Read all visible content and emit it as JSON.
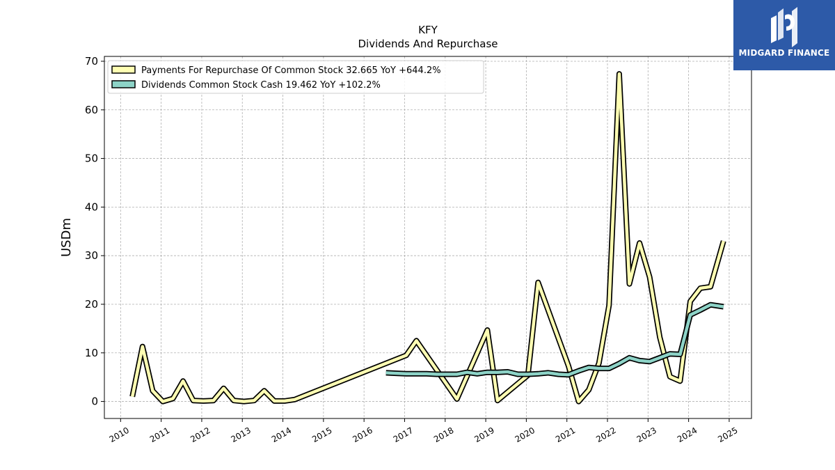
{
  "chart_data": {
    "type": "line",
    "title": "KFY",
    "subtitle": "Dividends And Repurchase",
    "xlabel": "",
    "ylabel": "USDm",
    "xlim": [
      2009.6,
      2025.55
    ],
    "ylim": [
      -3.5,
      71
    ],
    "x_ticks": [
      "2010",
      "2011",
      "2012",
      "2013",
      "2014",
      "2015",
      "2016",
      "2017",
      "2018",
      "2019",
      "2020",
      "2021",
      "2022",
      "2023",
      "2024",
      "2025"
    ],
    "y_ticks": [
      0,
      10,
      20,
      30,
      40,
      50,
      60,
      70
    ],
    "grid": true,
    "legend_position": "top-left",
    "series": [
      {
        "name": "Payments For Repurchase Of Common Stock",
        "legend_label": "Payments For Repurchase Of Common Stock  32.665 YoY +644.2%",
        "color": "#ffffb3",
        "edge": "#000000",
        "points": [
          [
            2010.29,
            1.0
          ],
          [
            2010.54,
            11.3
          ],
          [
            2010.79,
            2.2
          ],
          [
            2011.04,
            0.0
          ],
          [
            2011.29,
            0.6
          ],
          [
            2011.54,
            4.2
          ],
          [
            2011.79,
            0.2
          ],
          [
            2012.04,
            0.1
          ],
          [
            2012.29,
            0.2
          ],
          [
            2012.54,
            2.7
          ],
          [
            2012.79,
            0.2
          ],
          [
            2013.04,
            0.0
          ],
          [
            2013.29,
            0.2
          ],
          [
            2013.54,
            2.2
          ],
          [
            2013.79,
            0.1
          ],
          [
            2014.04,
            0.1
          ],
          [
            2014.29,
            0.4
          ],
          [
            2017.04,
            9.5
          ],
          [
            2017.29,
            12.5
          ],
          [
            2018.29,
            0.5
          ],
          [
            2019.04,
            14.7
          ],
          [
            2019.29,
            0.2
          ],
          [
            2020.04,
            5.4
          ],
          [
            2020.29,
            24.5
          ],
          [
            2021.04,
            7.3
          ],
          [
            2021.29,
            0.0
          ],
          [
            2021.54,
            2.4
          ],
          [
            2021.79,
            7.9
          ],
          [
            2022.04,
            19.8
          ],
          [
            2022.29,
            67.4
          ],
          [
            2022.54,
            24.2
          ],
          [
            2022.79,
            32.6
          ],
          [
            2023.04,
            25.6
          ],
          [
            2023.29,
            13.2
          ],
          [
            2023.54,
            5.1
          ],
          [
            2023.79,
            4.2
          ],
          [
            2024.04,
            20.6
          ],
          [
            2024.29,
            23.3
          ],
          [
            2024.54,
            23.6
          ],
          [
            2024.86,
            33.0
          ]
        ]
      },
      {
        "name": "Dividends Common Stock Cash",
        "legend_label": "Dividends Common Stock Cash  19.462 YoY +102.2%",
        "color": "#8dd3c7",
        "edge": "#000000",
        "points": [
          [
            2016.54,
            5.9
          ],
          [
            2016.79,
            5.8
          ],
          [
            2017.04,
            5.7
          ],
          [
            2017.29,
            5.7
          ],
          [
            2017.54,
            5.7
          ],
          [
            2017.79,
            5.6
          ],
          [
            2018.04,
            5.6
          ],
          [
            2018.29,
            5.6
          ],
          [
            2018.54,
            6.0
          ],
          [
            2018.79,
            5.7
          ],
          [
            2019.04,
            6.0
          ],
          [
            2019.29,
            6.0
          ],
          [
            2019.54,
            6.1
          ],
          [
            2019.79,
            5.6
          ],
          [
            2020.04,
            5.6
          ],
          [
            2020.29,
            5.7
          ],
          [
            2020.54,
            5.9
          ],
          [
            2020.79,
            5.6
          ],
          [
            2021.04,
            5.5
          ],
          [
            2021.29,
            6.3
          ],
          [
            2021.54,
            7.0
          ],
          [
            2021.79,
            6.8
          ],
          [
            2022.04,
            6.8
          ],
          [
            2022.29,
            7.8
          ],
          [
            2022.54,
            9.0
          ],
          [
            2022.79,
            8.4
          ],
          [
            2023.04,
            8.2
          ],
          [
            2023.29,
            9.0
          ],
          [
            2023.54,
            9.8
          ],
          [
            2023.79,
            9.7
          ],
          [
            2024.04,
            17.8
          ],
          [
            2024.29,
            18.8
          ],
          [
            2024.54,
            19.9
          ],
          [
            2024.86,
            19.5
          ]
        ]
      }
    ]
  },
  "logo": {
    "text": "MIDGARD FINANCE",
    "icon": "midgard-logo-icon",
    "background": "#2d5aa8"
  }
}
